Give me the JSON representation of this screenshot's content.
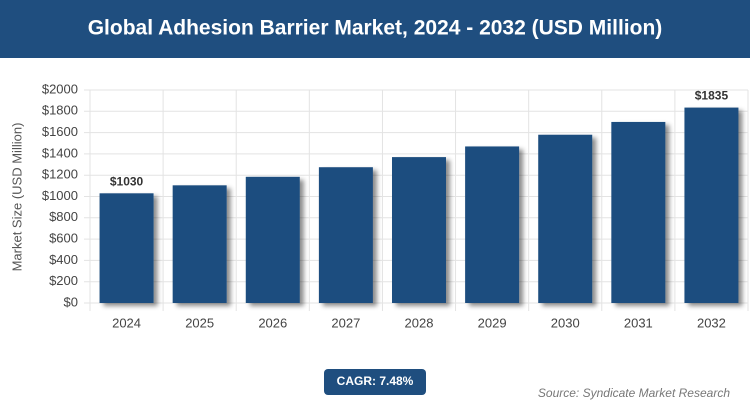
{
  "chart_data": {
    "type": "bar",
    "title": "Global Adhesion Barrier Market, 2024 - 2032 (USD Million)",
    "y_label": "Market Size (USD Million)",
    "categories": [
      "2024",
      "2025",
      "2026",
      "2027",
      "2028",
      "2029",
      "2030",
      "2031",
      "2032"
    ],
    "values": [
      1030,
      1105,
      1185,
      1275,
      1370,
      1470,
      1580,
      1700,
      1835
    ],
    "value_labels": [
      "$1030",
      null,
      null,
      null,
      null,
      null,
      null,
      null,
      "$1835"
    ],
    "color": "#1f4e7f",
    "ylim": [
      0,
      2000
    ],
    "yticks": [
      {
        "value": 0,
        "label": "$0"
      },
      {
        "value": 200,
        "label": "$200"
      },
      {
        "value": 400,
        "label": "$400"
      },
      {
        "value": 600,
        "label": "$600"
      },
      {
        "value": 800,
        "label": "$800"
      },
      {
        "value": 1000,
        "label": "$1000"
      },
      {
        "value": 1200,
        "label": "$1200"
      },
      {
        "value": 1400,
        "label": "$1400"
      },
      {
        "value": 1600,
        "label": "$1600"
      },
      {
        "value": 1800,
        "label": "$1800"
      },
      {
        "value": 2000,
        "label": "$2000"
      }
    ],
    "grid": true,
    "cagr": "CAGR: 7.48%",
    "source": "Source: Syndicate Market Research"
  }
}
